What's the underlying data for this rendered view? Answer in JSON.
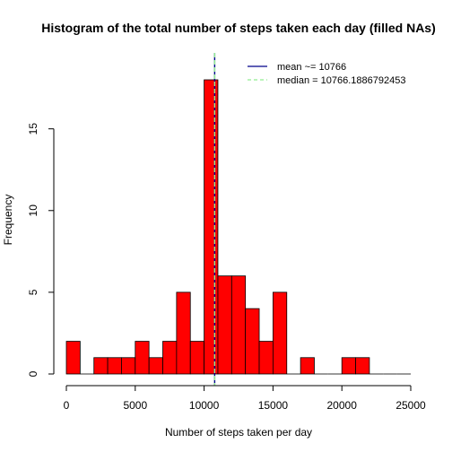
{
  "chart_data": {
    "type": "bar",
    "title": "Histogram of the total number of steps taken each day (filled NAs)",
    "xlabel": "Number of steps taken per day",
    "ylabel": "Frequency",
    "bin_width": 1000,
    "bin_starts": [
      0,
      1000,
      2000,
      3000,
      4000,
      5000,
      6000,
      7000,
      8000,
      9000,
      10000,
      11000,
      12000,
      13000,
      14000,
      15000,
      16000,
      17000,
      18000,
      19000,
      20000,
      21000,
      22000,
      23000,
      24000
    ],
    "values": [
      2,
      0,
      1,
      1,
      1,
      2,
      1,
      2,
      5,
      2,
      18,
      6,
      6,
      4,
      2,
      5,
      0,
      1,
      0,
      0,
      1,
      1,
      0,
      0,
      0
    ],
    "xlim": [
      0,
      25000
    ],
    "ylim": [
      0,
      18
    ],
    "x_ticks": [
      0,
      5000,
      10000,
      15000,
      20000,
      25000
    ],
    "y_ticks": [
      0,
      5,
      10,
      15
    ],
    "bar_color": "#ff0000",
    "mean_value": 10766,
    "median_value": 10766.1886792453,
    "mean_color": "#00008b",
    "median_color": "#90ee90",
    "legend": [
      {
        "label": "mean ~= 10766",
        "color": "#00008b",
        "style": "solid"
      },
      {
        "label": "median = 10766.1886792453",
        "color": "#90ee90",
        "style": "dashed"
      }
    ]
  }
}
